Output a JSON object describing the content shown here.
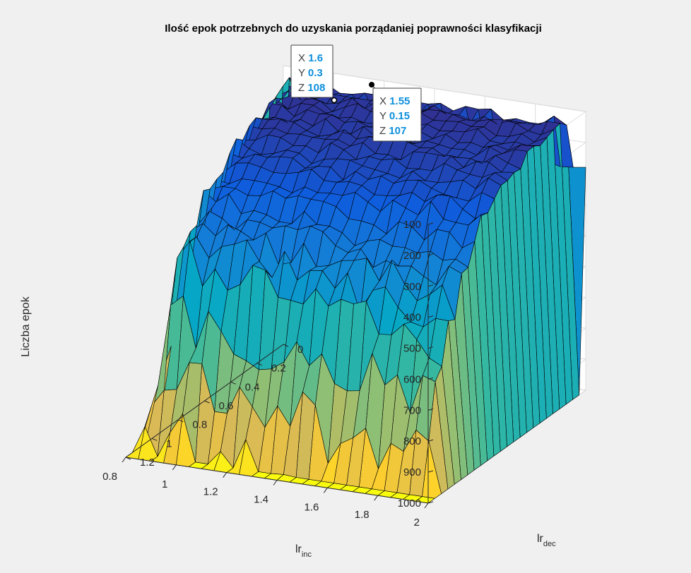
{
  "chart_data": {
    "type": "surface",
    "title": "Ilość epok potrzebnych do uzyskania porządaniej poprawności klasyfikacji",
    "xlabel": {
      "main": "lr",
      "sub": "inc"
    },
    "ylabel": {
      "main": "lr",
      "sub": "dec"
    },
    "zlabel": "Liczba epok",
    "xlim": [
      0.8,
      2.0
    ],
    "ylim": [
      0.0,
      1.2
    ],
    "zlim": [
      100,
      1000
    ],
    "z_direction": "reverse",
    "grid": true,
    "colormap": "parula",
    "x_ticks": [
      "0.8",
      "1",
      "1.2",
      "1.4",
      "1.6",
      "1.8",
      "2"
    ],
    "y_ticks": [
      "0",
      "0.2",
      "0.4",
      "0.6",
      "0.8",
      "1",
      "1.2"
    ],
    "z_ticks": [
      "100",
      "200",
      "300",
      "400",
      "500",
      "600",
      "700",
      "800",
      "900",
      "1000"
    ],
    "x": [
      0.8,
      0.85,
      0.9,
      0.95,
      1.0,
      1.05,
      1.1,
      1.15,
      1.2,
      1.25,
      1.3,
      1.35,
      1.4,
      1.45,
      1.5,
      1.55,
      1.6,
      1.65,
      1.7,
      1.75,
      1.8,
      1.85,
      1.9,
      1.95,
      2.0
    ],
    "y": [
      0.0,
      0.05,
      0.1,
      0.15,
      0.2,
      0.25,
      0.3,
      0.35,
      0.4,
      0.45,
      0.5,
      0.55,
      0.6,
      0.65,
      0.7,
      0.75,
      0.8,
      0.85,
      0.9,
      0.95,
      1.0,
      1.05,
      1.1,
      1.15,
      1.2
    ],
    "plateau_epochs": 110,
    "edge_epochs": 1000,
    "datatips": [
      {
        "x": 1.6,
        "y": 0.3,
        "z": 108
      },
      {
        "x": 1.55,
        "y": 0.15,
        "z": 107
      }
    ]
  },
  "datatip_labels": {
    "x": "X",
    "y": "Y",
    "z": "Z"
  },
  "datatip_text": [
    {
      "x": "1.6",
      "y": "0.3",
      "z": "108"
    },
    {
      "x": "1.55",
      "y": "0.15",
      "z": "107"
    }
  ]
}
